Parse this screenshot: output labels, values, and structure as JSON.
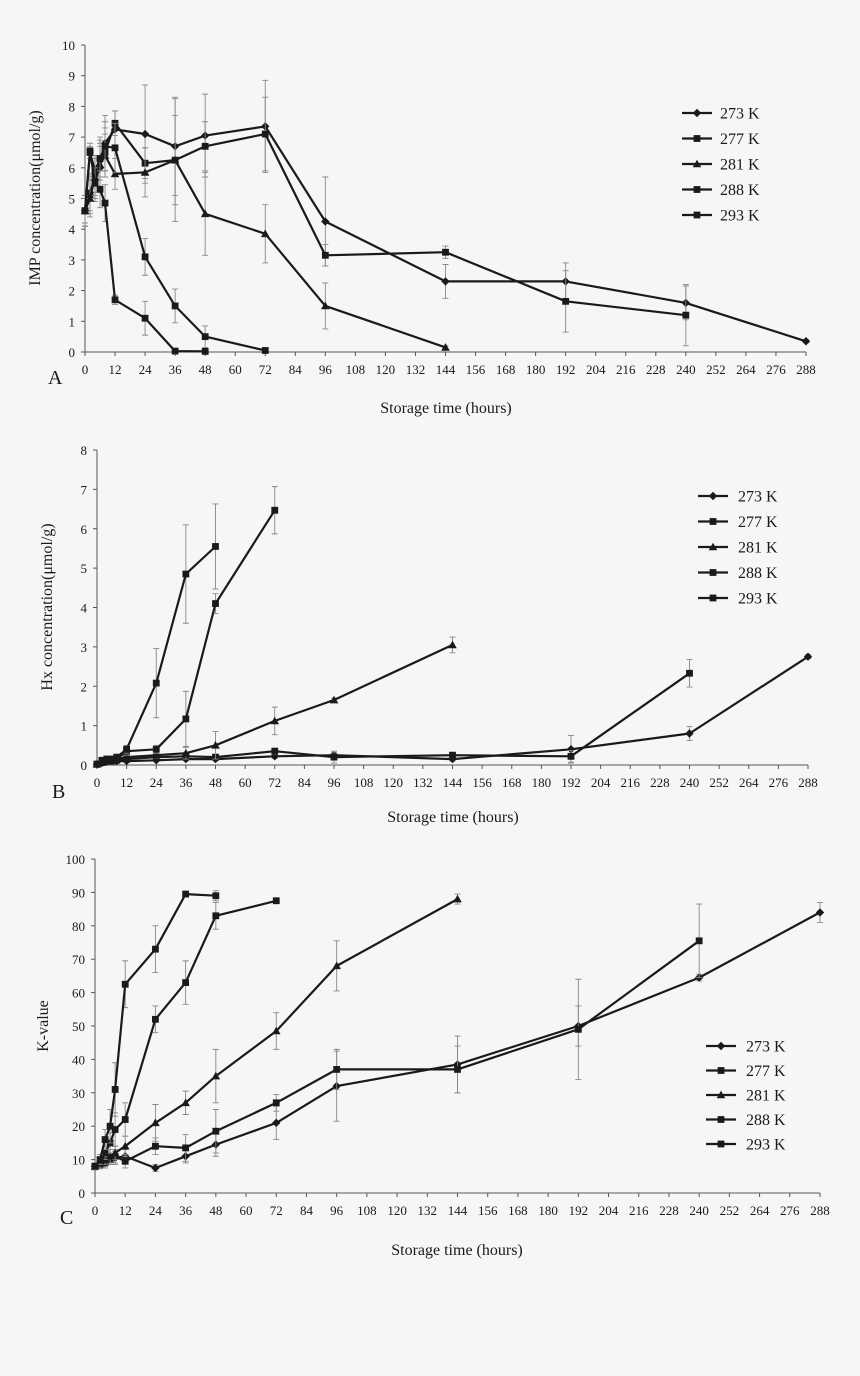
{
  "chart_data": [
    {
      "type": "line",
      "panel_label": "A",
      "xlabel": "Storage time (hours)",
      "ylabel": "IMP concentration(μmol/g)",
      "xlim": [
        0,
        288
      ],
      "ylim": [
        0,
        10
      ],
      "xticks": [
        0,
        12,
        24,
        36,
        48,
        60,
        72,
        84,
        96,
        108,
        120,
        132,
        144,
        156,
        168,
        180,
        192,
        204,
        216,
        228,
        240,
        252,
        264,
        276,
        288
      ],
      "yticks": [
        0,
        1,
        2,
        3,
        4,
        5,
        6,
        7,
        8,
        9,
        10
      ],
      "grid": false,
      "legend_position": "top-right",
      "series": [
        {
          "name": "273 K",
          "marker": "diamond",
          "x": [
            0,
            2,
            4,
            6,
            8,
            12,
            24,
            36,
            48,
            72,
            96,
            144,
            192,
            240,
            288
          ],
          "y": [
            4.6,
            5.2,
            5.6,
            6.0,
            6.8,
            7.25,
            7.1,
            6.7,
            7.05,
            7.35,
            4.25,
            2.3,
            2.3,
            1.6,
            0.35
          ],
          "err": [
            0.5,
            0.6,
            0.7,
            0.7,
            0.9,
            0.6,
            1.6,
            1.6,
            1.35,
            1.5,
            1.45,
            0.55,
            0.6,
            0.55,
            0.05
          ]
        },
        {
          "name": "277 K",
          "marker": "square",
          "x": [
            0,
            2,
            4,
            6,
            8,
            12,
            24,
            36,
            48,
            72,
            96,
            144,
            192,
            240
          ],
          "y": [
            4.6,
            5.1,
            5.8,
            6.3,
            6.5,
            7.45,
            6.15,
            6.25,
            6.7,
            7.1,
            3.15,
            3.25,
            1.65,
            1.2
          ],
          "err": [
            0.5,
            0.6,
            0.6,
            0.7,
            0.8,
            0.4,
            0.5,
            2.0,
            0.8,
            1.2,
            0.35,
            0.2,
            1.0,
            1.0
          ]
        },
        {
          "name": "281 K",
          "marker": "triangle",
          "x": [
            0,
            2,
            4,
            6,
            8,
            12,
            24,
            36,
            48,
            72,
            96,
            144
          ],
          "y": [
            4.6,
            5.0,
            5.7,
            6.1,
            6.4,
            5.8,
            5.85,
            6.25,
            4.5,
            3.85,
            1.5,
            0.15
          ],
          "err": [
            0.5,
            0.6,
            0.6,
            0.7,
            0.7,
            0.5,
            0.8,
            1.45,
            1.35,
            0.95,
            0.75,
            0.05
          ]
        },
        {
          "name": "288 K",
          "marker": "square",
          "x": [
            0,
            2,
            4,
            6,
            8,
            12,
            24,
            36,
            48,
            72
          ],
          "y": [
            4.6,
            6.5,
            5.9,
            6.3,
            6.7,
            6.65,
            3.1,
            1.5,
            0.5,
            0.05
          ],
          "err": [
            0.4,
            0.2,
            0.5,
            0.6,
            0.8,
            0.8,
            0.6,
            0.55,
            0.35,
            0.05
          ]
        },
        {
          "name": "293 K",
          "marker": "square",
          "x": [
            0,
            2,
            4,
            6,
            8,
            12,
            24,
            36,
            48
          ],
          "y": [
            4.6,
            6.55,
            5.5,
            5.3,
            4.85,
            1.7,
            1.1,
            0.03,
            0.02
          ],
          "err": [
            0.4,
            0.25,
            0.5,
            0.6,
            0.6,
            0.15,
            0.55,
            0.02,
            0.02
          ]
        }
      ]
    },
    {
      "type": "line",
      "panel_label": "B",
      "xlabel": "Storage time (hours)",
      "ylabel": "Hx concentration(μmol/g)",
      "xlim": [
        0,
        288
      ],
      "ylim": [
        0,
        8
      ],
      "xticks": [
        0,
        12,
        24,
        36,
        48,
        60,
        72,
        84,
        96,
        108,
        120,
        132,
        144,
        156,
        168,
        180,
        192,
        204,
        216,
        228,
        240,
        252,
        264,
        276,
        288
      ],
      "yticks": [
        0,
        1,
        2,
        3,
        4,
        5,
        6,
        7,
        8
      ],
      "grid": false,
      "legend_position": "top-right",
      "series": [
        {
          "name": "273 K",
          "marker": "diamond",
          "x": [
            0,
            2,
            4,
            6,
            8,
            12,
            24,
            36,
            48,
            72,
            96,
            144,
            192,
            240,
            288
          ],
          "y": [
            0.02,
            0.05,
            0.08,
            0.1,
            0.1,
            0.1,
            0.12,
            0.15,
            0.15,
            0.22,
            0.25,
            0.15,
            0.4,
            0.8,
            2.75
          ],
          "err": [
            0.01,
            0.02,
            0.03,
            0.03,
            0.03,
            0.03,
            0.03,
            0.04,
            0.04,
            0.05,
            0.06,
            0.05,
            0.35,
            0.18,
            0.05
          ]
        },
        {
          "name": "277 K",
          "marker": "square",
          "x": [
            0,
            2,
            4,
            6,
            8,
            12,
            24,
            36,
            48,
            72,
            96,
            144,
            192,
            240
          ],
          "y": [
            0.02,
            0.06,
            0.1,
            0.1,
            0.12,
            0.15,
            0.2,
            0.22,
            0.2,
            0.35,
            0.2,
            0.25,
            0.22,
            2.33
          ],
          "err": [
            0.01,
            0.02,
            0.03,
            0.03,
            0.03,
            0.04,
            0.05,
            0.05,
            0.05,
            0.08,
            0.15,
            0.05,
            0.15,
            0.35
          ]
        },
        {
          "name": "281 K",
          "marker": "triangle",
          "x": [
            0,
            2,
            4,
            6,
            8,
            12,
            24,
            36,
            48,
            72,
            96,
            144
          ],
          "y": [
            0.02,
            0.08,
            0.1,
            0.12,
            0.15,
            0.2,
            0.25,
            0.3,
            0.5,
            1.12,
            1.65,
            3.05
          ],
          "err": [
            0.01,
            0.03,
            0.03,
            0.04,
            0.05,
            0.06,
            0.08,
            0.15,
            0.35,
            0.35,
            0.05,
            0.2
          ]
        },
        {
          "name": "288 K",
          "marker": "square",
          "x": [
            0,
            2,
            4,
            6,
            8,
            12,
            24,
            36,
            48,
            72
          ],
          "y": [
            0.02,
            0.1,
            0.15,
            0.15,
            0.15,
            0.35,
            0.4,
            1.17,
            4.1,
            6.47
          ],
          "err": [
            0.01,
            0.03,
            0.05,
            0.05,
            0.05,
            0.1,
            0.1,
            0.7,
            0.25,
            0.6
          ]
        },
        {
          "name": "293 K",
          "marker": "square",
          "x": [
            0,
            2,
            4,
            6,
            8,
            12,
            24,
            36,
            48
          ],
          "y": [
            0.02,
            0.12,
            0.15,
            0.15,
            0.2,
            0.4,
            2.08,
            4.85,
            5.55
          ],
          "err": [
            0.01,
            0.04,
            0.05,
            0.05,
            0.06,
            0.1,
            0.88,
            1.25,
            1.08
          ]
        }
      ]
    },
    {
      "type": "line",
      "panel_label": "C",
      "xlabel": "Storage time (hours)",
      "ylabel": "K-value",
      "xlim": [
        0,
        288
      ],
      "ylim": [
        0,
        100
      ],
      "xticks": [
        0,
        12,
        24,
        36,
        48,
        60,
        72,
        84,
        96,
        108,
        120,
        132,
        144,
        156,
        168,
        180,
        192,
        204,
        216,
        228,
        240,
        252,
        264,
        276,
        288
      ],
      "yticks": [
        0,
        10,
        20,
        30,
        40,
        50,
        60,
        70,
        80,
        90,
        100
      ],
      "grid": false,
      "legend_position": "right",
      "series": [
        {
          "name": "273 K",
          "marker": "diamond",
          "x": [
            0,
            2,
            4,
            6,
            8,
            12,
            24,
            36,
            48,
            72,
            96,
            144,
            192,
            240,
            288
          ],
          "y": [
            8,
            8.5,
            9,
            10,
            10.5,
            11,
            7.5,
            11,
            14.5,
            21,
            32,
            38.5,
            50,
            64.5,
            84
          ],
          "err": [
            1.0,
            1.2,
            1.5,
            1.5,
            2.0,
            2.0,
            1.0,
            2.0,
            3.5,
            5.0,
            10.5,
            8.5,
            6.0,
            1.0,
            3.0
          ]
        },
        {
          "name": "277 K",
          "marker": "square",
          "x": [
            0,
            2,
            4,
            6,
            8,
            12,
            24,
            36,
            48,
            72,
            96,
            144,
            192,
            240
          ],
          "y": [
            8,
            8.5,
            9,
            10,
            11,
            9.5,
            14,
            13.5,
            18.5,
            27,
            37,
            37,
            49,
            75.5
          ],
          "err": [
            1.0,
            1.2,
            1.5,
            1.5,
            2.0,
            2.0,
            2.5,
            4.0,
            6.5,
            2.5,
            6.0,
            7.0,
            15.0,
            11.0
          ]
        },
        {
          "name": "281 K",
          "marker": "triangle",
          "x": [
            0,
            2,
            4,
            6,
            8,
            12,
            24,
            36,
            48,
            72,
            96,
            144
          ],
          "y": [
            8,
            9,
            10,
            11,
            12,
            14,
            21,
            27,
            35,
            48.5,
            68,
            88
          ],
          "err": [
            1.0,
            1.5,
            1.5,
            2.0,
            2.0,
            3.0,
            5.5,
            3.5,
            8.0,
            5.5,
            7.5,
            1.5
          ]
        },
        {
          "name": "288 K",
          "marker": "square",
          "x": [
            0,
            2,
            4,
            6,
            8,
            12,
            24,
            36,
            48,
            72
          ],
          "y": [
            8,
            9,
            12,
            15,
            19,
            22,
            52,
            63,
            83,
            87.5
          ],
          "err": [
            1.0,
            1.5,
            2.0,
            3.0,
            5.0,
            5.0,
            4.0,
            6.5,
            4.0,
            0.5
          ]
        },
        {
          "name": "293 K",
          "marker": "square",
          "x": [
            0,
            2,
            4,
            6,
            8,
            12,
            24,
            36,
            48
          ],
          "y": [
            8,
            10,
            16,
            20,
            31,
            62.5,
            73,
            89.5,
            89
          ],
          "err": [
            1.0,
            1.5,
            3.0,
            5.0,
            8.0,
            7.0,
            7.0,
            0.5,
            1.5
          ]
        }
      ]
    }
  ]
}
